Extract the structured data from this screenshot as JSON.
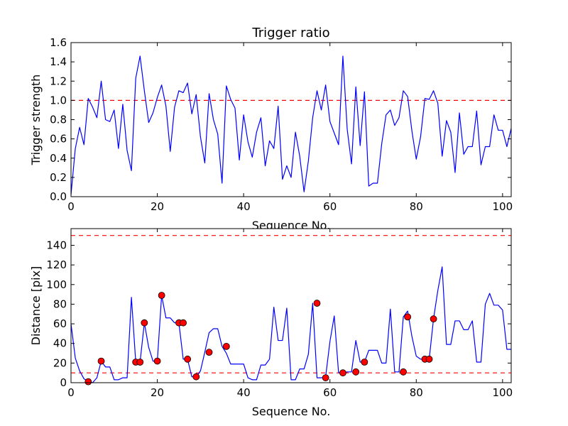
{
  "chart_data": [
    {
      "type": "line",
      "title": "Trigger ratio",
      "xlabel": "Sequence No.",
      "ylabel": "Trigger strength",
      "xlim": [
        0,
        102
      ],
      "ylim": [
        0,
        1.6
      ],
      "xticks": [
        0,
        20,
        40,
        60,
        80,
        100
      ],
      "yticks": [
        0.0,
        0.2,
        0.4,
        0.6,
        0.8,
        1.0,
        1.2,
        1.4,
        1.6
      ],
      "grid": false,
      "hlines": [
        {
          "y": 1.0,
          "style": "dashed",
          "color": "#ff0000"
        }
      ],
      "series": [
        {
          "color": "#0000ff",
          "x": [
            0,
            1,
            2,
            3,
            4,
            5,
            6,
            7,
            8,
            9,
            10,
            11,
            12,
            13,
            14,
            15,
            16,
            17,
            18,
            19,
            20,
            21,
            22,
            23,
            24,
            25,
            26,
            27,
            28,
            29,
            30,
            31,
            32,
            33,
            34,
            35,
            36,
            37,
            38,
            39,
            40,
            41,
            42,
            43,
            44,
            45,
            46,
            47,
            48,
            49,
            50,
            51,
            52,
            53,
            54,
            55,
            56,
            57,
            58,
            59,
            60,
            61,
            62,
            63,
            64,
            65,
            66,
            67,
            68,
            69,
            70,
            71,
            72,
            73,
            74,
            75,
            76,
            77,
            78,
            79,
            80,
            81,
            82,
            83,
            84,
            85,
            86,
            87,
            88,
            89,
            90,
            91,
            92,
            93,
            94,
            95,
            96,
            97,
            98,
            99,
            100,
            101,
            102
          ],
          "y": [
            0.02,
            0.5,
            0.72,
            0.54,
            1.02,
            0.93,
            0.82,
            1.2,
            0.8,
            0.78,
            0.9,
            0.5,
            0.96,
            0.48,
            0.27,
            1.23,
            1.46,
            1.1,
            0.77,
            0.87,
            1.03,
            1.16,
            0.94,
            0.47,
            0.93,
            1.1,
            1.08,
            1.18,
            0.86,
            1.06,
            0.62,
            0.35,
            1.07,
            0.8,
            0.65,
            0.14,
            1.15,
            1.01,
            0.92,
            0.38,
            0.85,
            0.57,
            0.41,
            0.67,
            0.82,
            0.32,
            0.58,
            0.5,
            0.94,
            0.18,
            0.32,
            0.2,
            0.67,
            0.42,
            0.05,
            0.37,
            0.82,
            1.1,
            0.9,
            1.16,
            0.78,
            0.66,
            0.54,
            1.46,
            0.7,
            0.34,
            1.14,
            0.53,
            1.09,
            0.11,
            0.14,
            0.14,
            0.55,
            0.85,
            0.9,
            0.74,
            0.82,
            1.1,
            1.04,
            0.68,
            0.39,
            0.62,
            1.02,
            1.01,
            1.1,
            0.97,
            0.42,
            0.79,
            0.67,
            0.25,
            0.87,
            0.44,
            0.52,
            0.52,
            0.89,
            0.33,
            0.52,
            0.52,
            0.85,
            0.69,
            0.69,
            0.52,
            0.71
          ]
        }
      ]
    },
    {
      "type": "line",
      "xlabel": "Sequence No.",
      "ylabel": "Distance [pix]",
      "xlim": [
        0,
        102
      ],
      "ylim": [
        0,
        157
      ],
      "xticks": [
        0,
        20,
        40,
        60,
        80,
        100
      ],
      "yticks": [
        0,
        20,
        40,
        60,
        80,
        100,
        120,
        140
      ],
      "grid": false,
      "hlines": [
        {
          "y": 10,
          "style": "dashed",
          "color": "#ff0000"
        },
        {
          "y": 150,
          "style": "dashed",
          "color": "#ff0000"
        }
      ],
      "series": [
        {
          "color": "#0000ff",
          "x": [
            0,
            1,
            2,
            3,
            4,
            5,
            6,
            7,
            8,
            9,
            10,
            11,
            12,
            13,
            14,
            15,
            16,
            17,
            18,
            19,
            20,
            21,
            22,
            23,
            24,
            25,
            26,
            27,
            28,
            29,
            30,
            31,
            32,
            33,
            34,
            35,
            36,
            37,
            38,
            39,
            40,
            41,
            42,
            43,
            44,
            45,
            46,
            47,
            48,
            49,
            50,
            51,
            52,
            53,
            54,
            55,
            56,
            57,
            58,
            59,
            60,
            61,
            62,
            63,
            64,
            65,
            66,
            67,
            68,
            69,
            70,
            71,
            72,
            73,
            74,
            75,
            76,
            77,
            78,
            79,
            80,
            81,
            82,
            83,
            84,
            85,
            86,
            87,
            88,
            89,
            90,
            91,
            92,
            93,
            94,
            95,
            96,
            97,
            98,
            99,
            100,
            101,
            102
          ],
          "y": [
            60,
            25,
            12,
            4,
            1,
            0,
            5,
            22,
            16,
            16,
            3,
            3,
            5,
            5,
            87,
            21,
            21,
            61,
            36,
            22,
            22,
            89,
            66,
            66,
            61,
            61,
            24,
            24,
            6,
            6,
            12,
            31,
            51,
            55,
            55,
            37,
            30,
            19,
            19,
            19,
            19,
            5,
            3,
            3,
            18,
            18,
            24,
            77,
            43,
            43,
            76,
            3,
            3,
            14,
            14,
            29,
            81,
            5,
            5,
            6,
            42,
            68,
            10,
            10,
            11,
            11,
            43,
            21,
            21,
            33,
            33,
            33,
            20,
            20,
            75,
            11,
            11,
            67,
            73,
            47,
            27,
            24,
            24,
            24,
            65,
            94,
            118,
            39,
            39,
            63,
            63,
            54,
            54,
            63,
            21,
            21,
            80,
            91,
            79,
            79,
            74,
            34,
            34
          ]
        }
      ],
      "markers": {
        "color": "#ff0000",
        "x": [
          4,
          7,
          15,
          16,
          17,
          20,
          21,
          25,
          26,
          27,
          29,
          32,
          36,
          57,
          59,
          63,
          66,
          68,
          77,
          78,
          82,
          83,
          84
        ],
        "y": [
          1,
          22,
          21,
          21,
          61,
          22,
          89,
          61,
          61,
          24,
          6,
          31,
          37,
          81,
          5,
          10,
          11,
          21,
          11,
          67,
          24,
          24,
          65
        ]
      }
    }
  ]
}
